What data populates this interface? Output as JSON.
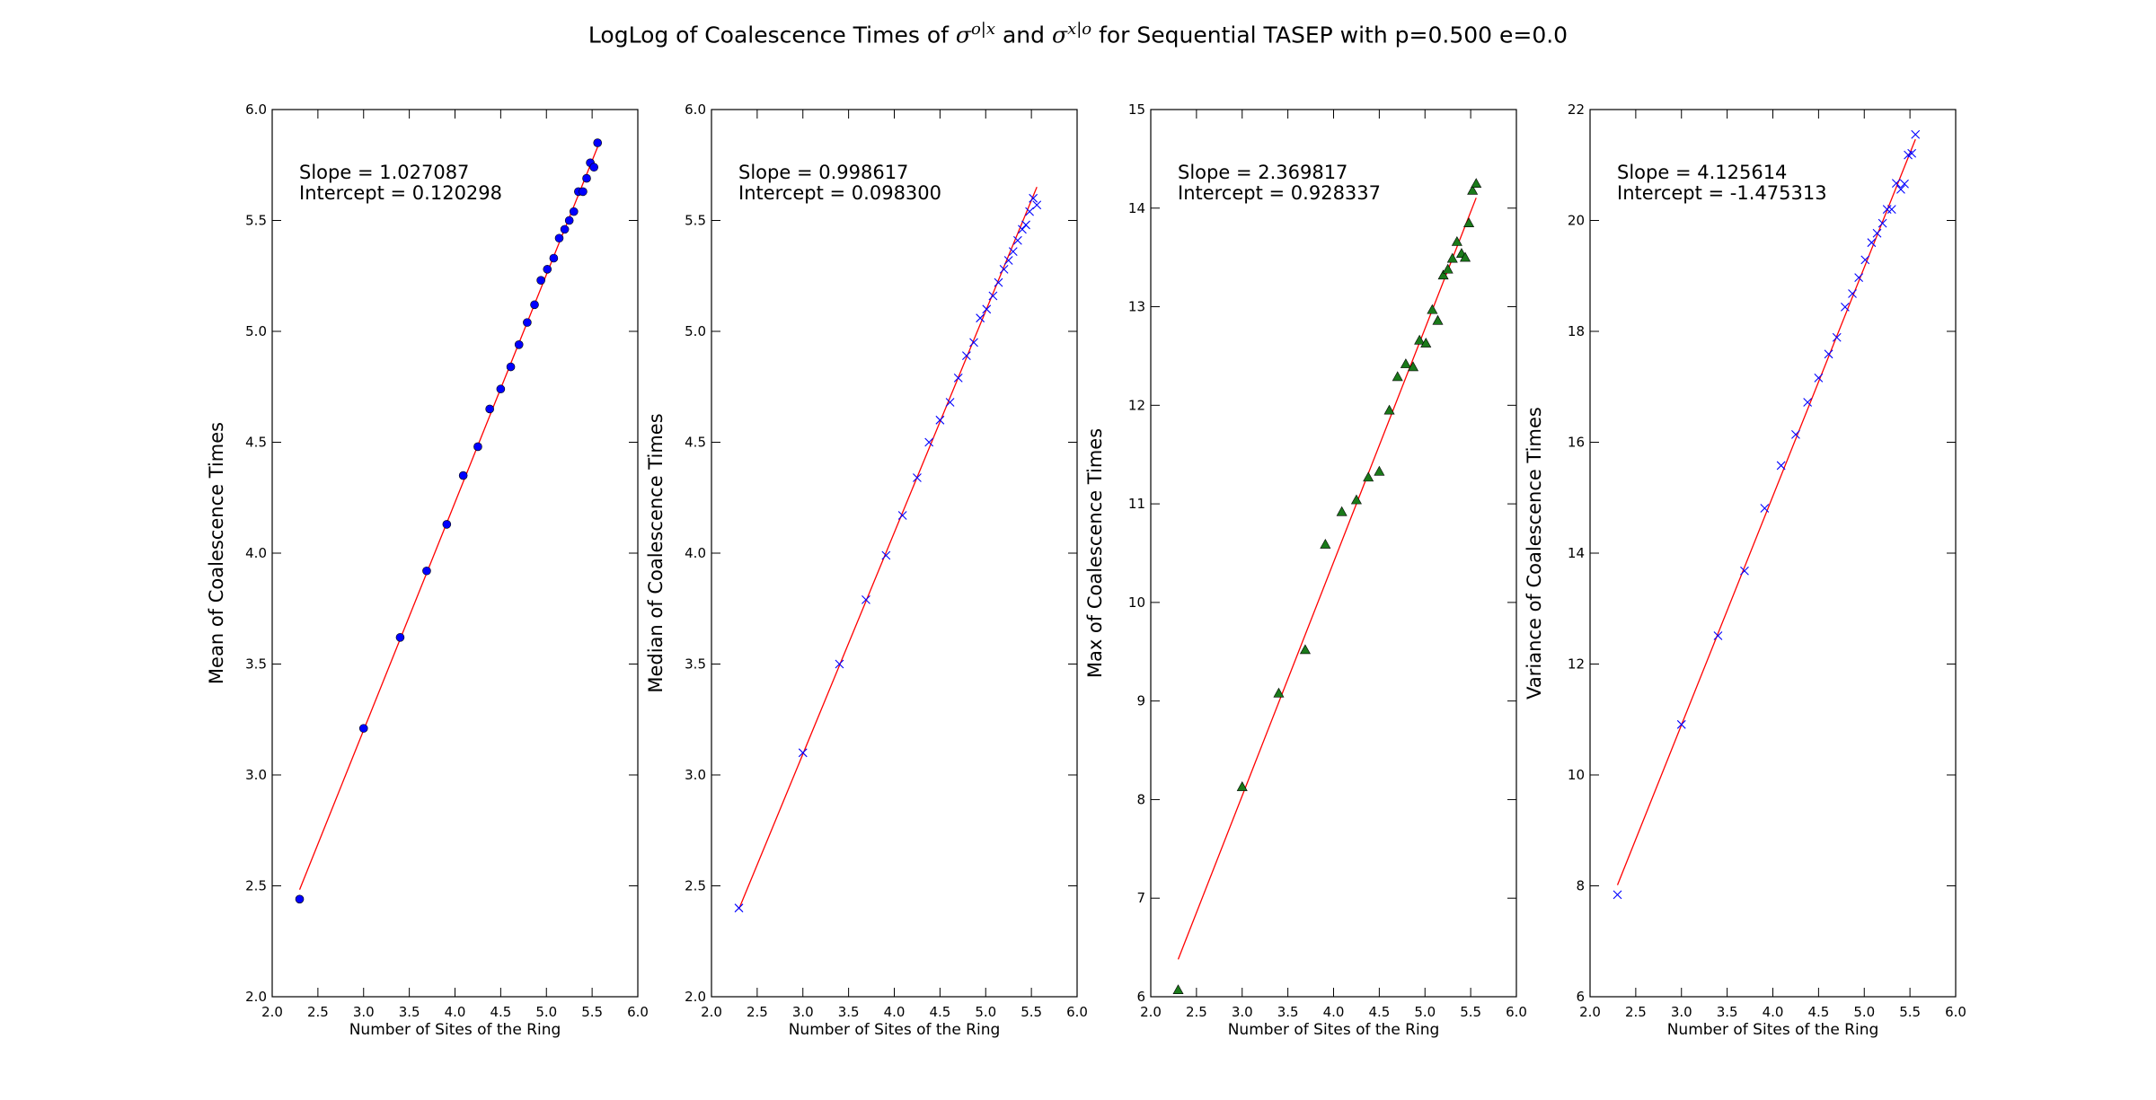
{
  "figure": {
    "title_prefix": "LogLog of Coalescence Times of",
    "sigma_symbol": "σ",
    "sup_one": "o|x",
    "title_and": "and",
    "sup_two": "x|o",
    "title_suffix": "for Sequential TASEP with p=0.500 e=0.0"
  },
  "chart_data": [
    {
      "type": "scatter",
      "marker": "circle",
      "marker_color": "#0000ff",
      "fit_line_color": "#ff0000",
      "xlabel": "Number of Sites of the Ring",
      "ylabel": "Mean of Coalescence Times",
      "xlim": [
        2.0,
        6.0
      ],
      "ylim": [
        2.0,
        6.0
      ],
      "xticks": [
        "2.0",
        "2.5",
        "3.0",
        "3.5",
        "4.0",
        "4.5",
        "5.0",
        "5.5",
        "6.0"
      ],
      "yticks": [
        "2.0",
        "2.5",
        "3.0",
        "3.5",
        "4.0",
        "4.5",
        "5.0",
        "5.5",
        "6.0"
      ],
      "annotation": [
        "Slope = 1.027087",
        "Intercept = 0.120298"
      ],
      "slope": 1.027087,
      "intercept": 0.120298,
      "fit_x_range": [
        2.3,
        5.56
      ],
      "x": [
        2.3,
        3.0,
        3.4,
        3.69,
        3.91,
        4.09,
        4.25,
        4.38,
        4.5,
        4.61,
        4.7,
        4.79,
        4.87,
        4.94,
        5.01,
        5.08,
        5.14,
        5.2,
        5.25,
        5.3,
        5.35,
        5.4,
        5.44,
        5.48,
        5.52,
        5.56
      ],
      "y": [
        2.44,
        3.21,
        3.62,
        3.92,
        4.13,
        4.35,
        4.48,
        4.65,
        4.74,
        4.84,
        4.94,
        5.04,
        5.12,
        5.23,
        5.28,
        5.33,
        5.42,
        5.46,
        5.5,
        5.54,
        5.63,
        5.63,
        5.69,
        5.76,
        5.74,
        5.85
      ]
    },
    {
      "type": "scatter",
      "marker": "x",
      "marker_color": "#0000ff",
      "fit_line_color": "#ff0000",
      "xlabel": "Number of Sites of the Ring",
      "ylabel": "Median of Coalescence Times",
      "xlim": [
        2.0,
        6.0
      ],
      "ylim": [
        2.0,
        6.0
      ],
      "xticks": [
        "2.0",
        "2.5",
        "3.0",
        "3.5",
        "4.0",
        "4.5",
        "5.0",
        "5.5",
        "6.0"
      ],
      "yticks": [
        "2.0",
        "2.5",
        "3.0",
        "3.5",
        "4.0",
        "4.5",
        "5.0",
        "5.5",
        "6.0"
      ],
      "annotation": [
        "Slope = 0.998617",
        "Intercept = 0.098300"
      ],
      "slope": 0.998617,
      "intercept": 0.0983,
      "fit_x_range": [
        2.3,
        5.56
      ],
      "x": [
        2.3,
        3.0,
        3.4,
        3.69,
        3.91,
        4.09,
        4.25,
        4.38,
        4.5,
        4.61,
        4.7,
        4.79,
        4.87,
        4.94,
        5.01,
        5.08,
        5.14,
        5.2,
        5.25,
        5.3,
        5.35,
        5.4,
        5.44,
        5.48,
        5.52,
        5.56
      ],
      "y": [
        2.4,
        3.1,
        3.5,
        3.79,
        3.99,
        4.17,
        4.34,
        4.5,
        4.6,
        4.68,
        4.79,
        4.89,
        4.95,
        5.06,
        5.1,
        5.16,
        5.22,
        5.28,
        5.32,
        5.36,
        5.41,
        5.46,
        5.48,
        5.54,
        5.6,
        5.57
      ]
    },
    {
      "type": "scatter",
      "marker": "triangle",
      "marker_color": "#1a7a1a",
      "fit_line_color": "#ff0000",
      "xlabel": "Number of Sites of the Ring",
      "ylabel": "Max of Coalescence Times",
      "xlim": [
        2.0,
        6.0
      ],
      "ylim": [
        6.0,
        15.0
      ],
      "xticks": [
        "2.0",
        "2.5",
        "3.0",
        "3.5",
        "4.0",
        "4.5",
        "5.0",
        "5.5",
        "6.0"
      ],
      "yticks": [
        "6",
        "7",
        "8",
        "9",
        "10",
        "11",
        "12",
        "13",
        "14",
        "15"
      ],
      "annotation": [
        "Slope = 2.369817",
        "Intercept = 0.928337"
      ],
      "slope": 2.369817,
      "intercept": 0.928337,
      "fit_x_range": [
        2.3,
        5.56
      ],
      "x": [
        2.3,
        3.0,
        3.4,
        3.69,
        3.91,
        4.09,
        4.25,
        4.38,
        4.5,
        4.61,
        4.7,
        4.79,
        4.87,
        4.94,
        5.01,
        5.08,
        5.14,
        5.2,
        5.25,
        5.3,
        5.35,
        5.4,
        5.44,
        5.48,
        5.52,
        5.56
      ],
      "y": [
        6.07,
        8.13,
        9.08,
        9.52,
        10.59,
        10.92,
        11.04,
        11.27,
        11.33,
        11.95,
        12.29,
        12.42,
        12.39,
        12.66,
        12.63,
        12.97,
        12.86,
        13.32,
        13.38,
        13.49,
        13.66,
        13.54,
        13.5,
        13.85,
        14.18,
        14.25
      ]
    },
    {
      "type": "scatter",
      "marker": "x",
      "marker_color": "#0000ff",
      "fit_line_color": "#ff0000",
      "xlabel": "Number of Sites of the Ring",
      "ylabel": "Variance of Coalescence Times",
      "xlim": [
        2.0,
        6.0
      ],
      "ylim": [
        6.0,
        22.0
      ],
      "xticks": [
        "2.0",
        "2.5",
        "3.0",
        "3.5",
        "4.0",
        "4.5",
        "5.0",
        "5.5",
        "6.0"
      ],
      "yticks": [
        "6",
        "8",
        "10",
        "12",
        "14",
        "16",
        "18",
        "20",
        "22"
      ],
      "annotation": [
        "Slope = 4.125614",
        "Intercept = -1.475313"
      ],
      "slope": 4.125614,
      "intercept": -1.475313,
      "fit_x_range": [
        2.3,
        5.56
      ],
      "x": [
        2.3,
        3.0,
        3.4,
        3.69,
        3.91,
        4.09,
        4.25,
        4.38,
        4.5,
        4.61,
        4.7,
        4.79,
        4.87,
        4.94,
        5.01,
        5.08,
        5.14,
        5.2,
        5.25,
        5.3,
        5.35,
        5.4,
        5.44,
        5.48,
        5.52,
        5.56
      ],
      "y": [
        7.84,
        10.91,
        12.51,
        13.68,
        14.81,
        15.58,
        16.14,
        16.72,
        17.16,
        17.59,
        17.89,
        18.44,
        18.68,
        18.97,
        19.29,
        19.6,
        19.77,
        19.95,
        20.2,
        20.2,
        20.67,
        20.56,
        20.66,
        21.18,
        21.21,
        21.55
      ]
    }
  ]
}
